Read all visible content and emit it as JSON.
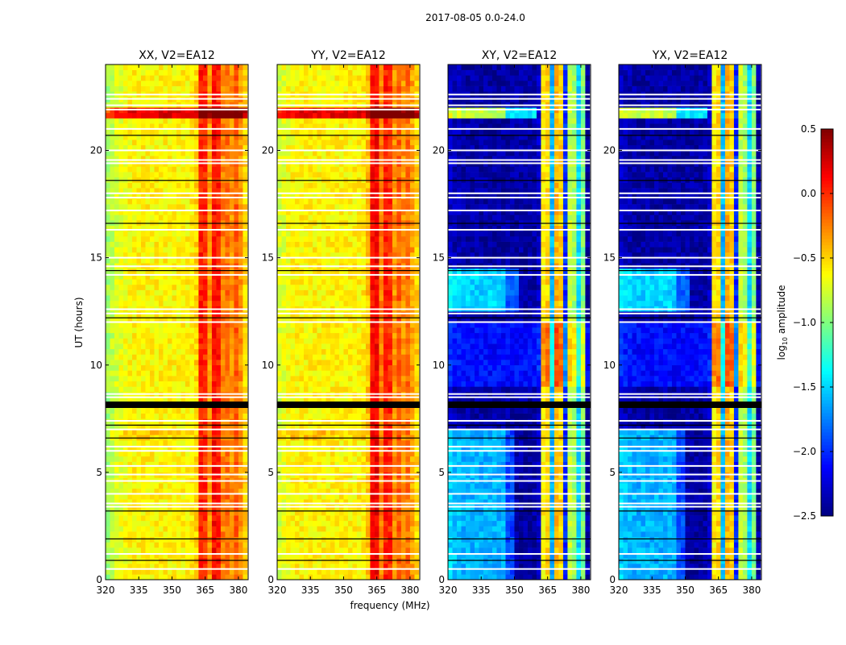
{
  "chart_data": {
    "type": "heatmap",
    "title": "2017-08-05 0.0-24.0",
    "xlabel": "frequency (MHz)",
    "ylabel": "UT (hours)",
    "xlim": [
      320,
      384.4
    ],
    "ylim": [
      0,
      24
    ],
    "xticks": [
      320,
      335,
      350,
      365,
      380
    ],
    "xtick_labels": [
      "320",
      "335",
      "350",
      "365",
      "380"
    ],
    "yticks": [
      0,
      5,
      10,
      15,
      20
    ],
    "ytick_labels": [
      "0",
      "5",
      "10",
      "15",
      "20"
    ],
    "freq_bin_MHz": 2,
    "time_bin_hours": 0.25,
    "colormap": "jet",
    "colorbar": {
      "label_prefix": "log",
      "label_sub": "10",
      "label_suffix": " amplitude",
      "vmin": -2.5,
      "vmax": 0.5,
      "ticks": [
        0.5,
        0.0,
        -0.5,
        -1.0,
        -1.5,
        -2.0,
        -2.5
      ],
      "tick_labels": [
        "0.5",
        "0.0",
        "−0.5",
        "−1.0",
        "−1.5",
        "−2.0",
        "−2.5"
      ]
    },
    "flagged_white_hours": [
      0.5,
      1.2,
      3.4,
      3.55,
      4.0,
      4.6,
      4.9,
      5.3,
      6.0,
      6.2,
      7.0,
      7.4,
      8.5,
      8.65,
      12.0,
      12.4,
      12.6,
      14.2,
      14.6,
      15.0,
      16.3,
      17.2,
      17.8,
      18.0,
      19.4,
      19.55,
      20.0,
      21.0,
      21.9,
      22.1,
      22.4,
      22.6
    ],
    "flagged_black_hours": [
      0.9,
      1.9,
      3.2,
      6.6,
      7.2,
      12.2,
      14.4,
      16.6,
      18.6,
      20.7
    ],
    "flagged_black_bands": [
      [
        8.0,
        8.3
      ]
    ],
    "panels": [
      {
        "title": "XX, V2=EA12",
        "freq_profile": [
          -0.9,
          -0.8,
          -0.75,
          -0.7,
          -0.65,
          -0.62,
          -0.6,
          -0.6,
          -0.6,
          -0.6,
          -0.6,
          -0.6,
          -0.6,
          -0.6,
          -0.6,
          -0.6,
          -0.6,
          -0.6,
          -0.6,
          -0.58,
          -0.5,
          0.05,
          0.0,
          -0.3,
          0.1,
          0.05,
          -0.25,
          -0.2,
          -0.3,
          -0.15,
          -0.3,
          -0.5
        ],
        "time_mods": [
          {
            "t0": 21.3,
            "t1": 21.8,
            "delta": 0.8,
            "fmax": 384
          },
          {
            "t0": 6.3,
            "t1": 6.9,
            "delta": 0.12,
            "fmax": 360
          }
        ]
      },
      {
        "title": "YY, V2=EA12",
        "freq_profile": [
          -0.75,
          -0.7,
          -0.65,
          -0.62,
          -0.6,
          -0.6,
          -0.6,
          -0.6,
          -0.6,
          -0.6,
          -0.6,
          -0.6,
          -0.6,
          -0.6,
          -0.6,
          -0.6,
          -0.6,
          -0.6,
          -0.6,
          -0.58,
          -0.45,
          0.1,
          0.15,
          -0.25,
          0.05,
          0.0,
          -0.3,
          -0.15,
          -0.3,
          -0.2,
          -0.35,
          -0.5
        ],
        "time_mods": [
          {
            "t0": 21.3,
            "t1": 21.8,
            "delta": 0.8,
            "fmax": 384
          },
          {
            "t0": 6.3,
            "t1": 6.9,
            "delta": 0.15,
            "fmax": 360
          }
        ]
      },
      {
        "title": "XY, V2=EA12",
        "freq_profile": [
          -2.3,
          -2.35,
          -2.35,
          -2.4,
          -2.4,
          -2.4,
          -2.4,
          -2.4,
          -2.4,
          -2.4,
          -2.4,
          -2.4,
          -2.4,
          -2.4,
          -2.4,
          -2.4,
          -2.4,
          -2.4,
          -2.4,
          -2.4,
          -2.3,
          -0.6,
          -0.5,
          -1.6,
          -0.4,
          -0.5,
          -2.0,
          -0.8,
          -0.9,
          -1.5,
          -1.0,
          -2.4
        ],
        "time_mods": [
          {
            "t0": 0,
            "t1": 7,
            "delta": 0.8,
            "fmax": 350
          },
          {
            "t0": 12.5,
            "t1": 14.3,
            "delta": 0.9,
            "fmax": 352
          },
          {
            "t0": 21.3,
            "t1": 21.8,
            "delta": 1.6,
            "fmax": 360
          },
          {
            "t0": 9,
            "t1": 12,
            "delta": 0.3,
            "fmax": 384
          }
        ]
      },
      {
        "title": "YX, V2=EA12",
        "freq_profile": [
          -2.3,
          -2.35,
          -2.35,
          -2.4,
          -2.4,
          -2.4,
          -2.4,
          -2.4,
          -2.4,
          -2.4,
          -2.4,
          -2.4,
          -2.4,
          -2.4,
          -2.4,
          -2.4,
          -2.4,
          -2.4,
          -2.4,
          -2.4,
          -2.3,
          -0.6,
          -0.5,
          -1.6,
          -0.4,
          -0.5,
          -2.0,
          -0.8,
          -0.9,
          -1.5,
          -1.0,
          -2.4
        ],
        "time_mods": [
          {
            "t0": 0,
            "t1": 7,
            "delta": 0.8,
            "fmax": 350
          },
          {
            "t0": 12.5,
            "t1": 14.3,
            "delta": 0.9,
            "fmax": 352
          },
          {
            "t0": 21.3,
            "t1": 21.8,
            "delta": 1.6,
            "fmax": 360
          },
          {
            "t0": 9,
            "t1": 12,
            "delta": 0.3,
            "fmax": 384
          }
        ]
      }
    ]
  }
}
